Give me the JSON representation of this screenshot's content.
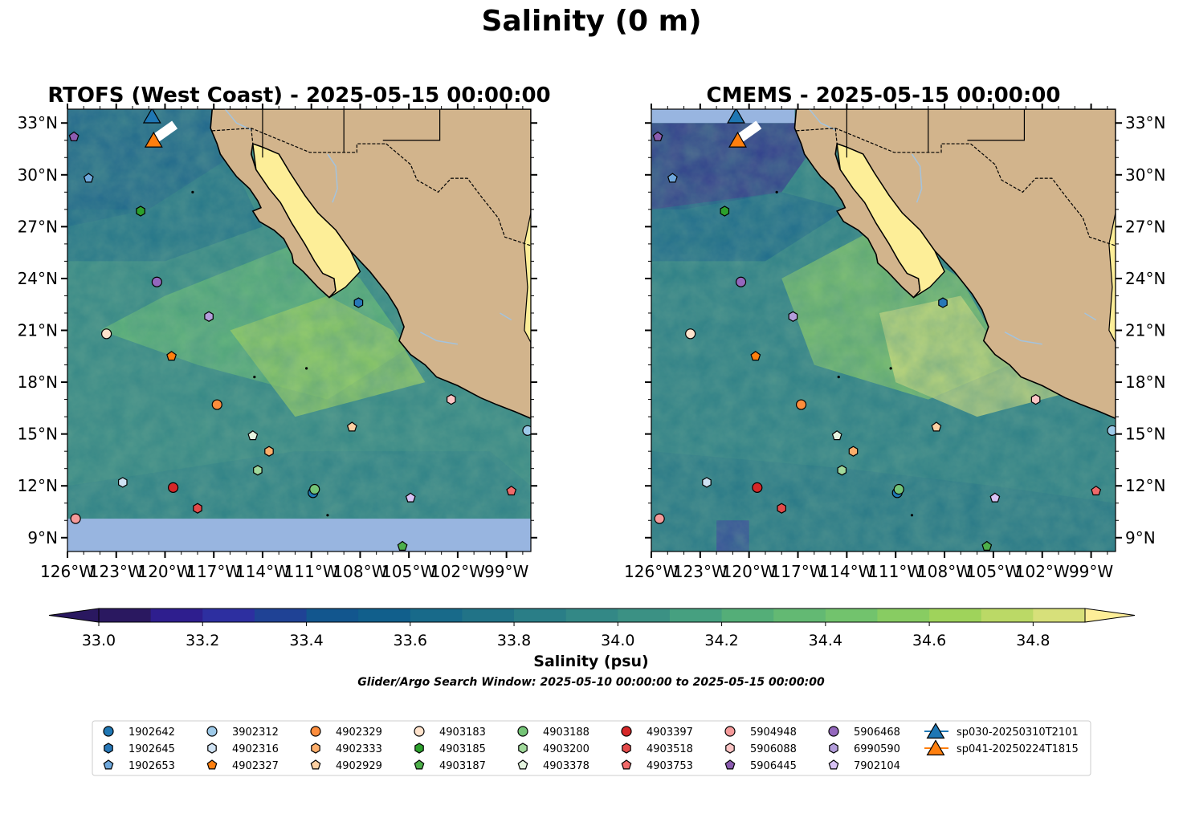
{
  "title": "Salinity (0 m)",
  "panels": [
    {
      "id": "rtofs",
      "title": "RTOFS (West Coast) - 2025-05-15 00:00:00"
    },
    {
      "id": "cmems",
      "title": "CMEMS - 2025-05-15 00:00:00"
    }
  ],
  "map": {
    "lon_range": [
      -126,
      -97.5
    ],
    "lat_range": [
      8.2,
      33.8
    ],
    "lon_ticks": [
      -126,
      -123,
      -120,
      -117,
      -114,
      -111,
      -108,
      -105,
      -102,
      -99
    ],
    "lon_tick_labels": [
      "126°W",
      "123°W",
      "120°W",
      "117°W",
      "114°W",
      "111°W",
      "108°W",
      "105°W",
      "102°W",
      "99°W"
    ],
    "lat_ticks": [
      33,
      30,
      27,
      24,
      21,
      18,
      15,
      12,
      9
    ],
    "lat_tick_labels": [
      "33°N",
      "30°N",
      "27°N",
      "24°N",
      "21°N",
      "18°N",
      "15°N",
      "12°N",
      "9°N"
    ],
    "land_color": "#d2b48c",
    "gulf_color": "#fdee98",
    "nodata_color": "#98b5e0"
  },
  "colorbar": {
    "label": "Salinity (psu)",
    "range": [
      33.0,
      34.9
    ],
    "step": 0.1,
    "tick_values": [
      33.0,
      33.2,
      33.4,
      33.6,
      33.8,
      34.0,
      34.2,
      34.4,
      34.6,
      34.8
    ],
    "tick_labels": [
      "33.0",
      "33.2",
      "33.4",
      "33.6",
      "33.8",
      "34.0",
      "34.2",
      "34.4",
      "34.6",
      "34.8"
    ],
    "colors": [
      "#2a1860",
      "#2e1e8e",
      "#2d2fa0",
      "#1f4295",
      "#12568e",
      "#115f8c",
      "#186a8a",
      "#217387",
      "#2a7e87",
      "#338886",
      "#3b9184",
      "#46a080",
      "#54ae78",
      "#63b973",
      "#72c36d",
      "#88cc62",
      "#9fd35b",
      "#bbd966",
      "#d7e07a",
      "#fdee98"
    ]
  },
  "subtitle": "Glider/Argo Search Window: 2025-05-10 00:00:00 to 2025-05-15 00:00:00",
  "chart_data": {
    "type": "scatter",
    "series": [
      {
        "name": "1902642",
        "marker": "circle",
        "color": "#1f77b4",
        "lon": -110.9,
        "lat": 11.6
      },
      {
        "name": "1902645",
        "marker": "hexagon",
        "color": "#2878b8",
        "lon": -108.1,
        "lat": 22.6
      },
      {
        "name": "1902653",
        "marker": "pentagon",
        "color": "#6fa8dc",
        "lon": -124.7,
        "lat": 29.8
      },
      {
        "name": "3902312",
        "marker": "circle",
        "color": "#9ecae9",
        "lon": -97.7,
        "lat": 15.2
      },
      {
        "name": "4902316",
        "marker": "hexagon",
        "color": "#cfe2f3",
        "lon": -122.6,
        "lat": 12.2
      },
      {
        "name": "4902327",
        "marker": "pentagon",
        "color": "#ff7f0e",
        "lon": -119.6,
        "lat": 19.5
      },
      {
        "name": "4902329",
        "marker": "circle",
        "color": "#fd8d3c",
        "lon": -116.8,
        "lat": 16.7
      },
      {
        "name": "4902333",
        "marker": "hexagon",
        "color": "#fdae6b",
        "lon": -113.6,
        "lat": 14.0
      },
      {
        "name": "4902929",
        "marker": "pentagon",
        "color": "#fdd0a2",
        "lon": -108.5,
        "lat": 15.4
      },
      {
        "name": "4903183",
        "marker": "circle",
        "color": "#ffe3cc",
        "lon": -123.6,
        "lat": 20.8
      },
      {
        "name": "4903185",
        "marker": "hexagon",
        "color": "#2ca02c",
        "lon": -121.5,
        "lat": 27.9
      },
      {
        "name": "4903187",
        "marker": "pentagon",
        "color": "#4daf4a",
        "lon": -105.4,
        "lat": 8.5
      },
      {
        "name": "4903188",
        "marker": "circle",
        "color": "#74c476",
        "lon": -110.8,
        "lat": 11.8
      },
      {
        "name": "4903200",
        "marker": "hexagon",
        "color": "#a1d99b",
        "lon": -114.3,
        "lat": 12.9
      },
      {
        "name": "4903378",
        "marker": "pentagon",
        "color": "#e5f5e0",
        "lon": -114.6,
        "lat": 14.9
      },
      {
        "name": "4903397",
        "marker": "circle",
        "color": "#d62728",
        "lon": -119.5,
        "lat": 11.9
      },
      {
        "name": "4903518",
        "marker": "hexagon",
        "color": "#e34a4a",
        "lon": -118.0,
        "lat": 10.7
      },
      {
        "name": "4903753",
        "marker": "pentagon",
        "color": "#f06a6a",
        "lon": -98.7,
        "lat": 11.7
      },
      {
        "name": "5904948",
        "marker": "circle",
        "color": "#f59a9a",
        "lon": -125.5,
        "lat": 10.1
      },
      {
        "name": "5906088",
        "marker": "hexagon",
        "color": "#fbc4c4",
        "lon": -102.4,
        "lat": 17.0
      },
      {
        "name": "5906445",
        "marker": "pentagon",
        "color": "#8c5cb0",
        "lon": -125.6,
        "lat": 32.2
      },
      {
        "name": "5906468",
        "marker": "circle",
        "color": "#9467bd",
        "lon": -120.5,
        "lat": 23.8
      },
      {
        "name": "6990590",
        "marker": "hexagon",
        "color": "#b39ddb",
        "lon": -117.3,
        "lat": 21.8
      },
      {
        "name": "7902104",
        "marker": "pentagon",
        "color": "#d8c2f5",
        "lon": -104.9,
        "lat": 11.3
      },
      {
        "name": "sp030-20250310T2101",
        "marker": "triangle",
        "color": "#1f77b4",
        "lon": -120.8,
        "lat": 33.4,
        "line": true
      },
      {
        "name": "sp041-20250224T1815",
        "marker": "triangle",
        "color": "#ff7f0e",
        "lon": -120.7,
        "lat": 32.0,
        "line": true
      }
    ]
  }
}
